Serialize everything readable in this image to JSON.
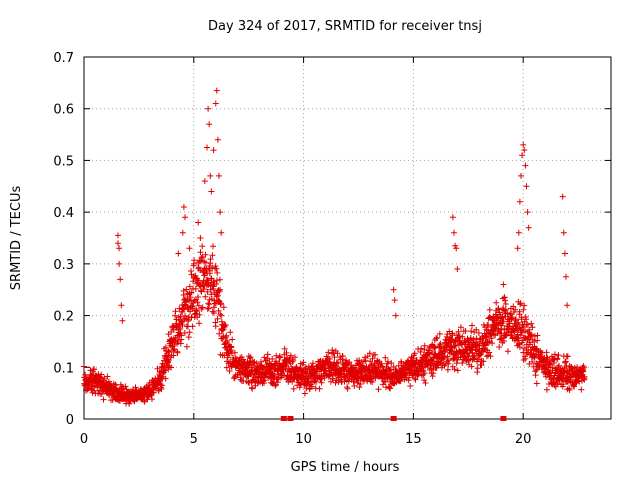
{
  "chart_data": {
    "type": "scatter",
    "title": "Day 324 of 2017, SRMTID for receiver tnsj",
    "xlabel": "GPS time / hours",
    "ylabel": "SRMTID / TECUs",
    "xlim": [
      0,
      24
    ],
    "ylim": [
      0,
      0.7
    ],
    "xticks": [
      0,
      5,
      10,
      15,
      20
    ],
    "yticks": [
      0,
      0.1,
      0.2,
      0.3,
      0.4,
      0.5,
      0.6,
      0.7
    ],
    "grid": true,
    "marker": "+",
    "color": "#e00000",
    "time_range_hours": [
      0,
      22.8
    ],
    "series": [
      {
        "name": "SRMTID",
        "profile": [
          [
            0.0,
            0.07,
            0.015
          ],
          [
            0.5,
            0.075,
            0.02
          ],
          [
            1.0,
            0.06,
            0.02
          ],
          [
            1.5,
            0.05,
            0.015
          ],
          [
            2.0,
            0.045,
            0.012
          ],
          [
            2.5,
            0.045,
            0.012
          ],
          [
            3.0,
            0.055,
            0.015
          ],
          [
            3.5,
            0.08,
            0.02
          ],
          [
            4.0,
            0.15,
            0.04
          ],
          [
            4.5,
            0.2,
            0.05
          ],
          [
            5.0,
            0.24,
            0.06
          ],
          [
            5.5,
            0.28,
            0.07
          ],
          [
            6.0,
            0.26,
            0.07
          ],
          [
            6.5,
            0.13,
            0.04
          ],
          [
            7.0,
            0.1,
            0.03
          ],
          [
            7.5,
            0.095,
            0.025
          ],
          [
            8.0,
            0.09,
            0.025
          ],
          [
            8.5,
            0.095,
            0.025
          ],
          [
            9.0,
            0.1,
            0.03
          ],
          [
            9.5,
            0.09,
            0.03
          ],
          [
            10.0,
            0.08,
            0.025
          ],
          [
            10.5,
            0.09,
            0.025
          ],
          [
            11.0,
            0.1,
            0.03
          ],
          [
            11.5,
            0.1,
            0.03
          ],
          [
            12.0,
            0.09,
            0.025
          ],
          [
            12.5,
            0.09,
            0.025
          ],
          [
            13.0,
            0.095,
            0.025
          ],
          [
            13.5,
            0.09,
            0.025
          ],
          [
            14.0,
            0.08,
            0.025
          ],
          [
            14.5,
            0.09,
            0.02
          ],
          [
            15.0,
            0.1,
            0.025
          ],
          [
            15.5,
            0.11,
            0.03
          ],
          [
            16.0,
            0.12,
            0.03
          ],
          [
            16.5,
            0.13,
            0.03
          ],
          [
            17.0,
            0.14,
            0.035
          ],
          [
            17.5,
            0.14,
            0.035
          ],
          [
            18.0,
            0.13,
            0.035
          ],
          [
            18.5,
            0.17,
            0.04
          ],
          [
            19.0,
            0.19,
            0.04
          ],
          [
            19.5,
            0.18,
            0.04
          ],
          [
            20.0,
            0.17,
            0.05
          ],
          [
            20.5,
            0.13,
            0.04
          ],
          [
            21.0,
            0.1,
            0.03
          ],
          [
            21.5,
            0.09,
            0.03
          ],
          [
            22.0,
            0.09,
            0.03
          ],
          [
            22.5,
            0.085,
            0.025
          ],
          [
            22.8,
            0.09,
            0.02
          ]
        ],
        "outliers": [
          [
            1.55,
            0.355
          ],
          [
            1.55,
            0.34
          ],
          [
            1.6,
            0.33
          ],
          [
            1.6,
            0.3
          ],
          [
            1.65,
            0.27
          ],
          [
            1.7,
            0.22
          ],
          [
            1.75,
            0.19
          ],
          [
            4.3,
            0.32
          ],
          [
            4.5,
            0.36
          ],
          [
            4.55,
            0.41
          ],
          [
            4.6,
            0.39
          ],
          [
            4.8,
            0.33
          ],
          [
            5.0,
            0.3
          ],
          [
            5.2,
            0.38
          ],
          [
            5.3,
            0.35
          ],
          [
            5.5,
            0.46
          ],
          [
            5.6,
            0.525
          ],
          [
            5.65,
            0.6
          ],
          [
            5.7,
            0.57
          ],
          [
            5.75,
            0.47
          ],
          [
            5.8,
            0.44
          ],
          [
            5.9,
            0.52
          ],
          [
            6.0,
            0.61
          ],
          [
            6.05,
            0.635
          ],
          [
            6.1,
            0.54
          ],
          [
            6.15,
            0.47
          ],
          [
            6.2,
            0.4
          ],
          [
            6.25,
            0.36
          ],
          [
            14.1,
            0.25
          ],
          [
            14.15,
            0.23
          ],
          [
            14.2,
            0.2
          ],
          [
            16.8,
            0.39
          ],
          [
            16.85,
            0.36
          ],
          [
            16.9,
            0.335
          ],
          [
            16.95,
            0.33
          ],
          [
            17.0,
            0.29
          ],
          [
            19.1,
            0.26
          ],
          [
            19.15,
            0.235
          ],
          [
            19.75,
            0.33
          ],
          [
            19.8,
            0.36
          ],
          [
            19.85,
            0.42
          ],
          [
            19.9,
            0.47
          ],
          [
            19.95,
            0.51
          ],
          [
            20.0,
            0.53
          ],
          [
            20.05,
            0.52
          ],
          [
            20.1,
            0.49
          ],
          [
            20.15,
            0.45
          ],
          [
            20.2,
            0.4
          ],
          [
            20.25,
            0.37
          ],
          [
            21.8,
            0.43
          ],
          [
            21.85,
            0.36
          ],
          [
            21.9,
            0.32
          ],
          [
            21.95,
            0.275
          ],
          [
            22.0,
            0.22
          ]
        ],
        "zero_flags": [
          9.1,
          9.4,
          14.1,
          19.1
        ]
      }
    ]
  }
}
